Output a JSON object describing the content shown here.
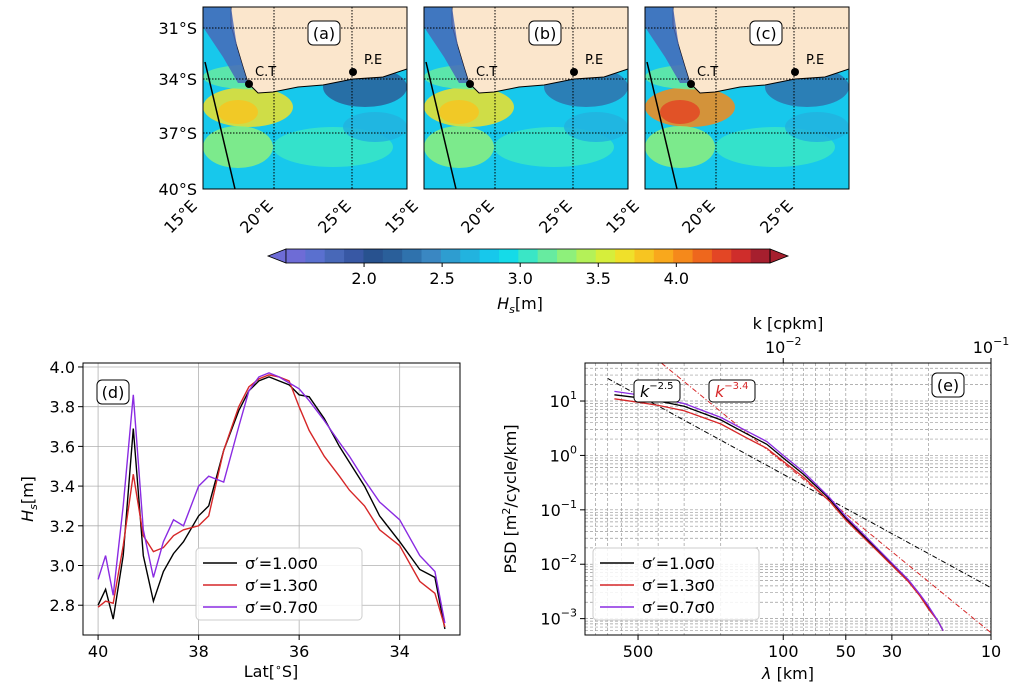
{
  "colorbar": {
    "label": "H_s[m]",
    "ticks": [
      "2.0",
      "2.5",
      "3.0",
      "3.5",
      "4.0"
    ],
    "tick_values": [
      2.0,
      2.5,
      3.0,
      3.5,
      4.0
    ],
    "range": [
      1.5,
      4.6
    ],
    "colors": [
      "#6e6cd6",
      "#5a70cf",
      "#4868b8",
      "#3858a4",
      "#28528f",
      "#2a5f9a",
      "#2f72ad",
      "#3a87c2",
      "#2e9dd0",
      "#22b3df",
      "#17c8ec",
      "#15dbe8",
      "#3ae6c6",
      "#67eba0",
      "#8ef07b",
      "#b4f158",
      "#d6ee3b",
      "#f0e02a",
      "#f7c521",
      "#f9a81c",
      "#f5891b",
      "#ee671d",
      "#e34625",
      "#cf2d2b",
      "#a61f2e"
    ]
  },
  "maps": {
    "panels": [
      {
        "tag": "(a)"
      },
      {
        "tag": "(b)"
      },
      {
        "tag": "(c)"
      }
    ],
    "lat_ticks": [
      "31°S",
      "34°S",
      "37°S",
      "40°S"
    ],
    "lon_ticks": [
      "15°E",
      "20°E",
      "25°E"
    ],
    "city_ct": "C.T",
    "city_pe": "P.E"
  },
  "chart_data": [
    {
      "type": "line",
      "panel": "(d)",
      "xlabel": "Lat[°S]",
      "ylabel": "H_s[m]",
      "xlim": [
        40.3,
        32.8
      ],
      "ylim": [
        2.65,
        4.02
      ],
      "xticks": [
        40,
        38,
        36,
        34
      ],
      "yticks": [
        2.8,
        3.0,
        3.2,
        3.4,
        3.6,
        3.8,
        4.0
      ],
      "grid": true,
      "legend": "lower-center",
      "series": [
        {
          "name": "σ′=1.0σ0",
          "color": "#000000",
          "x": [
            40.0,
            39.85,
            39.7,
            39.5,
            39.3,
            39.1,
            38.9,
            38.7,
            38.5,
            38.3,
            38.0,
            37.8,
            37.5,
            37.2,
            37.0,
            36.8,
            36.6,
            36.4,
            36.2,
            36.0,
            35.8,
            35.5,
            35.2,
            35.0,
            34.7,
            34.4,
            34.0,
            33.6,
            33.3,
            33.1
          ],
          "y": [
            2.8,
            2.88,
            2.73,
            3.05,
            3.69,
            3.05,
            2.82,
            2.97,
            3.06,
            3.12,
            3.25,
            3.3,
            3.58,
            3.78,
            3.88,
            3.93,
            3.95,
            3.93,
            3.91,
            3.86,
            3.85,
            3.74,
            3.6,
            3.52,
            3.4,
            3.25,
            3.12,
            2.98,
            2.94,
            2.68
          ]
        },
        {
          "name": "σ′=1.3σ0",
          "color": "#d62728",
          "x": [
            40.0,
            39.85,
            39.7,
            39.5,
            39.3,
            39.1,
            38.9,
            38.7,
            38.5,
            38.3,
            38.0,
            37.8,
            37.5,
            37.2,
            37.0,
            36.8,
            36.6,
            36.4,
            36.2,
            36.0,
            35.8,
            35.5,
            35.2,
            35.0,
            34.7,
            34.4,
            34.0,
            33.6,
            33.3,
            33.1
          ],
          "y": [
            2.79,
            2.82,
            2.81,
            3.1,
            3.46,
            3.15,
            3.07,
            3.09,
            3.15,
            3.18,
            3.2,
            3.25,
            3.58,
            3.8,
            3.9,
            3.94,
            3.96,
            3.95,
            3.93,
            3.8,
            3.68,
            3.55,
            3.45,
            3.38,
            3.3,
            3.18,
            3.1,
            2.92,
            2.86,
            2.69
          ]
        },
        {
          "name": "σ′=0.7σ0",
          "color": "#8a2be2",
          "x": [
            40.0,
            39.85,
            39.7,
            39.5,
            39.3,
            39.1,
            38.9,
            38.7,
            38.5,
            38.3,
            38.0,
            37.8,
            37.5,
            37.2,
            37.0,
            36.8,
            36.6,
            36.4,
            36.2,
            36.0,
            35.8,
            35.5,
            35.2,
            35.0,
            34.7,
            34.4,
            34.0,
            33.6,
            33.3,
            33.1
          ],
          "y": [
            2.93,
            3.05,
            2.85,
            3.3,
            3.86,
            3.18,
            2.94,
            3.12,
            3.23,
            3.2,
            3.4,
            3.45,
            3.42,
            3.7,
            3.88,
            3.95,
            3.97,
            3.95,
            3.92,
            3.89,
            3.83,
            3.73,
            3.62,
            3.55,
            3.43,
            3.32,
            3.23,
            3.05,
            2.97,
            2.71
          ]
        }
      ]
    },
    {
      "type": "line",
      "panel": "(e)",
      "xlabel": "λ [km]",
      "ylabel": "PSD [m²/cycle/km]",
      "top_xlabel": "k [cpkm]",
      "xscale": "log",
      "yscale": "log",
      "xlim": [
        900,
        10
      ],
      "ylim": [
        0.0005,
        50
      ],
      "xticks": [
        500,
        100,
        50,
        30,
        10
      ],
      "top_ticks": [
        "10^-2",
        "10^-1"
      ],
      "yticks": [
        "10^-3",
        "10^-2",
        "10^-1",
        "10^0",
        "10^1"
      ],
      "grid": true,
      "legend": "lower-left",
      "annotations": [
        {
          "text": "k^-2.5",
          "color": "#000000"
        },
        {
          "text": "k^-3.4",
          "color": "#d62728"
        }
      ],
      "reference_lines": [
        {
          "exponent": -2.5,
          "color": "#000000",
          "x": [
            700,
            10
          ],
          "y": [
            26,
            0.0037
          ]
        },
        {
          "exponent": -3.4,
          "color": "#d62728",
          "x": [
            420,
            10
          ],
          "y": [
            65,
            0.00055
          ]
        }
      ],
      "series": [
        {
          "name": "σ′=1.0σ0",
          "color": "#000000",
          "x": [
            650,
            500,
            400,
            300,
            200,
            150,
            120,
            100,
            80,
            60,
            50,
            40,
            35,
            30,
            25,
            22,
            20,
            18,
            17
          ],
          "y": [
            13,
            11.5,
            10,
            8,
            4.5,
            2.5,
            1.6,
            0.9,
            0.45,
            0.16,
            0.07,
            0.03,
            0.018,
            0.01,
            0.005,
            0.0027,
            0.0016,
            0.0009,
            0.0006
          ]
        },
        {
          "name": "σ′=1.3σ0",
          "color": "#d62728",
          "x": [
            650,
            500,
            400,
            300,
            200,
            150,
            120,
            100,
            80,
            60,
            50,
            40,
            35,
            30,
            25,
            22,
            20,
            18,
            17
          ],
          "y": [
            11,
            9.5,
            8.3,
            6.6,
            3.8,
            2.1,
            1.35,
            0.78,
            0.4,
            0.145,
            0.065,
            0.028,
            0.017,
            0.0095,
            0.0048,
            0.0026,
            0.0015,
            0.0009,
            0.0006
          ]
        },
        {
          "name": "σ′=0.7σ0",
          "color": "#8a2be2",
          "x": [
            650,
            500,
            400,
            300,
            200,
            150,
            120,
            100,
            80,
            60,
            50,
            40,
            35,
            30,
            25,
            22,
            20,
            18,
            17
          ],
          "y": [
            15,
            13,
            11.3,
            9,
            5,
            2.8,
            1.8,
            1.0,
            0.5,
            0.17,
            0.075,
            0.032,
            0.019,
            0.0105,
            0.0052,
            0.0028,
            0.0017,
            0.0009,
            0.0006
          ]
        }
      ]
    }
  ]
}
